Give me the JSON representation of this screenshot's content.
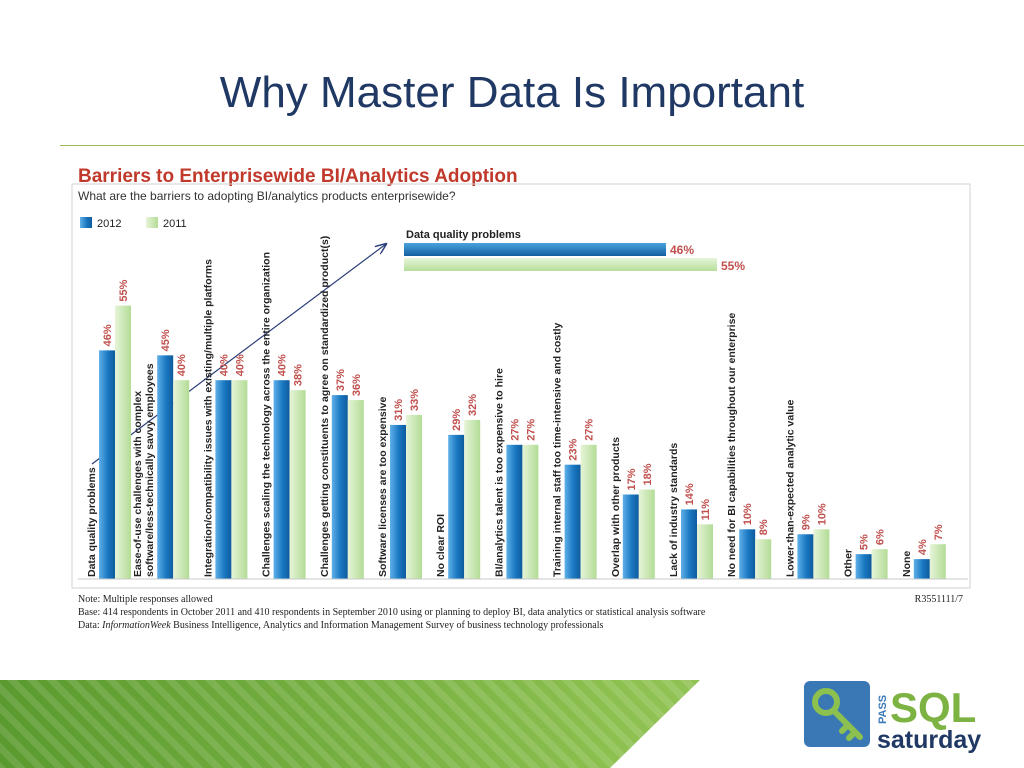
{
  "slide": {
    "title": "Why Master Data Is Important"
  },
  "figure": {
    "headline": "Barriers to Enterprisewide BI/Analytics Adoption",
    "question": "What are the barriers to adopting BI/analytics products enterprisewide?",
    "callout_label": "Data quality problems",
    "callout_2012": "46%",
    "callout_2011": "55%",
    "note": "Note: Multiple responses allowed",
    "base": "Base: 414 respondents in October 2011 and 410 respondents in September 2010 using or planning to deploy BI, data analytics or statistical analysis software",
    "source_prefix": "Data: ",
    "source_pub": "InformationWeek",
    "source_rest": " Business Intelligence, Analytics and Information Management Survey of business technology professionals",
    "report_id": "R3551111/7"
  },
  "chart_data": {
    "type": "bar",
    "orientation": "vertical",
    "title": "Barriers to Enterprisewide BI/Analytics Adoption",
    "subtitle": "What are the barriers to adopting BI/analytics products enterprisewide?",
    "categories": [
      "Data quality problems",
      "Ease-of-use challenges with complex software/less-technically savvy employees",
      "Integration/compatibility issues with existing/multiple platforms",
      "Challenges scaling the technology across the entire organization",
      "Challenges getting constituents to agree on standardized product(s)",
      "Software licenses are too expensive",
      "No clear ROI",
      "BI/analytics talent is too expensive to hire",
      "Training internal staff too time-intensive and costly",
      "Overlap with other products",
      "Lack of industry standards",
      "No need for BI capabilities throughout our enterprise",
      "Lower-than-expected analytic value",
      "Other",
      "None"
    ],
    "category_lines": [
      [
        "Data quality problems"
      ],
      [
        "Ease-of-use challenges with complex",
        "software/less-technically savvy employees"
      ],
      [
        "Integration/compatibility issues with existing/multiple platforms"
      ],
      [
        "Challenges scaling the technology across the entire organization"
      ],
      [
        "Challenges getting constituents to agree on standardized product(s)"
      ],
      [
        "Software licenses are too expensive"
      ],
      [
        "No clear ROI"
      ],
      [
        "BI/analytics talent is too expensive to hire"
      ],
      [
        "Training internal staff too time-intensive and costly"
      ],
      [
        "Overlap with other products"
      ],
      [
        "Lack of industry standards"
      ],
      [
        "No need for BI capabilities throughout our enterprise"
      ],
      [
        "Lower-than-expected analytic value"
      ],
      [
        "Other"
      ],
      [
        "None"
      ]
    ],
    "series": [
      {
        "name": "2012",
        "color": "#1f77c4",
        "values": [
          46,
          45,
          40,
          40,
          37,
          31,
          29,
          27,
          23,
          17,
          14,
          10,
          9,
          5,
          4
        ],
        "labels": [
          "46%",
          "45%",
          "40%",
          "40%",
          "37%",
          "31%",
          "29%",
          "27%",
          "23%",
          "17%",
          "14%",
          "10%",
          "9%",
          "5%",
          "4%"
        ]
      },
      {
        "name": "2011",
        "color": "#bfe3a8",
        "values": [
          55,
          40,
          40,
          38,
          36,
          33,
          32,
          27,
          27,
          18,
          11,
          8,
          10,
          6,
          7
        ],
        "labels": [
          "55%",
          "40%",
          "40%",
          "38%",
          "36%",
          "33%",
          "32%",
          "27%",
          "27%",
          "18%",
          "11%",
          "8%",
          "10%",
          "6%",
          "7%"
        ]
      }
    ],
    "ylim": [
      0,
      55
    ],
    "legend_position": "top-left",
    "grid": false,
    "label_color": "#c0504d"
  },
  "branding": {
    "logo_pass": "PASS",
    "logo_sql": "SQL",
    "logo_saturday": "saturday",
    "key_color": "#3a78b5"
  }
}
